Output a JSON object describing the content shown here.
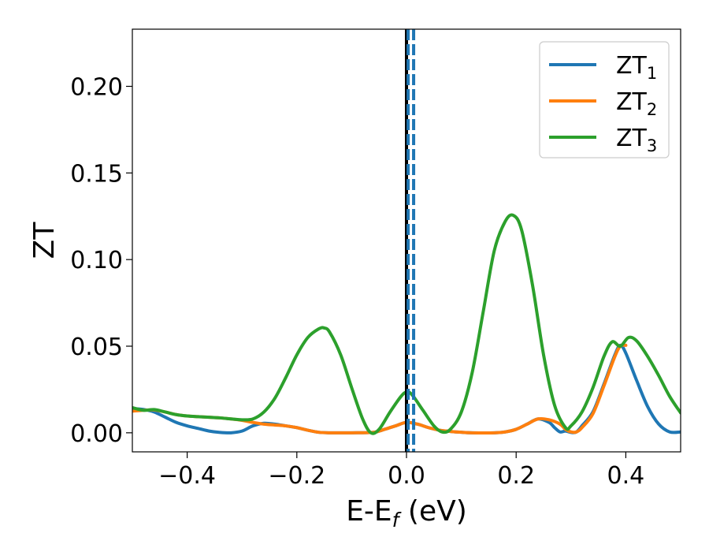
{
  "chart_data": {
    "type": "line",
    "title": "",
    "xlabel": "E-E",
    "xlabel_sub": "f",
    "xlabel_unit": " (eV)",
    "ylabel": "ZT",
    "xlim": [
      -0.5,
      0.5
    ],
    "ylim": [
      -0.011,
      0.233
    ],
    "xticks": [
      -0.4,
      -0.2,
      0.0,
      0.2,
      0.4
    ],
    "xtick_labels": [
      "−0.4",
      "−0.2",
      "0.0",
      "0.2",
      "0.4"
    ],
    "yticks": [
      0.0,
      0.05,
      0.1,
      0.15,
      0.2
    ],
    "ytick_labels": [
      "0.00",
      "0.05",
      "0.10",
      "0.15",
      "0.20"
    ],
    "grid": false,
    "legend_position": "top-right",
    "vlines": [
      {
        "x": 0.0,
        "color": "#000000",
        "style": "solid"
      },
      {
        "x": 0.003,
        "color": "#1f77b4",
        "style": "dashed"
      },
      {
        "x": 0.013,
        "color": "#1f77b4",
        "style": "dashed"
      }
    ],
    "series": [
      {
        "name": "ZT",
        "name_sub": "1",
        "color": "#1f77b4",
        "points": [
          [
            -0.5,
            0.014
          ],
          [
            -0.48,
            0.0135
          ],
          [
            -0.46,
            0.012
          ],
          [
            -0.44,
            0.009
          ],
          [
            -0.42,
            0.006
          ],
          [
            -0.4,
            0.004
          ],
          [
            -0.38,
            0.0025
          ],
          [
            -0.36,
            0.001
          ],
          [
            -0.34,
            0.0002
          ],
          [
            -0.32,
            0.0
          ],
          [
            -0.3,
            0.001
          ],
          [
            -0.28,
            0.004
          ],
          [
            -0.26,
            0.0055
          ],
          [
            -0.24,
            0.005
          ],
          [
            -0.22,
            0.004
          ],
          [
            -0.2,
            0.003
          ],
          [
            -0.18,
            0.0015
          ],
          [
            -0.16,
            0.0003
          ],
          [
            -0.14,
            0.0
          ],
          [
            -0.1,
            0.0
          ],
          [
            -0.06,
            0.0003
          ],
          [
            -0.04,
            0.002
          ],
          [
            -0.02,
            0.004
          ],
          [
            0.0,
            0.006
          ],
          [
            0.02,
            0.005
          ],
          [
            0.04,
            0.003
          ],
          [
            0.06,
            0.0015
          ],
          [
            0.08,
            0.0008
          ],
          [
            0.1,
            0.0003
          ],
          [
            0.12,
            0.0
          ],
          [
            0.16,
            0.0
          ],
          [
            0.18,
            0.0005
          ],
          [
            0.2,
            0.002
          ],
          [
            0.22,
            0.005
          ],
          [
            0.24,
            0.008
          ],
          [
            0.26,
            0.006
          ],
          [
            0.27,
            0.003
          ],
          [
            0.28,
            0.0005
          ],
          [
            0.29,
            0.001
          ],
          [
            0.3,
            0.0002
          ],
          [
            0.31,
            0.0005
          ],
          [
            0.32,
            0.004
          ],
          [
            0.34,
            0.012
          ],
          [
            0.36,
            0.028
          ],
          [
            0.38,
            0.045
          ],
          [
            0.39,
            0.0505
          ],
          [
            0.4,
            0.046
          ],
          [
            0.42,
            0.03
          ],
          [
            0.44,
            0.015
          ],
          [
            0.46,
            0.005
          ],
          [
            0.48,
            0.0005
          ],
          [
            0.5,
            0.0005
          ]
        ]
      },
      {
        "name": "ZT",
        "name_sub": "2",
        "color": "#ff7f0e",
        "points": [
          [
            -0.5,
            0.0125
          ],
          [
            -0.48,
            0.013
          ],
          [
            -0.46,
            0.0132
          ],
          [
            -0.44,
            0.012
          ],
          [
            -0.42,
            0.0105
          ],
          [
            -0.4,
            0.0097
          ],
          [
            -0.38,
            0.0093
          ],
          [
            -0.36,
            0.009
          ],
          [
            -0.34,
            0.0086
          ],
          [
            -0.32,
            0.008
          ],
          [
            -0.3,
            0.0072
          ],
          [
            -0.28,
            0.006
          ],
          [
            -0.26,
            0.005
          ],
          [
            -0.24,
            0.0045
          ],
          [
            -0.22,
            0.004
          ],
          [
            -0.2,
            0.003
          ],
          [
            -0.18,
            0.0015
          ],
          [
            -0.16,
            0.0003
          ],
          [
            -0.14,
            0.0
          ],
          [
            -0.1,
            0.0
          ],
          [
            -0.06,
            0.0003
          ],
          [
            -0.04,
            0.002
          ],
          [
            -0.02,
            0.004
          ],
          [
            0.0,
            0.006
          ],
          [
            0.02,
            0.005
          ],
          [
            0.04,
            0.003
          ],
          [
            0.06,
            0.0015
          ],
          [
            0.08,
            0.0008
          ],
          [
            0.1,
            0.0003
          ],
          [
            0.12,
            0.0
          ],
          [
            0.16,
            0.0
          ],
          [
            0.18,
            0.0005
          ],
          [
            0.2,
            0.002
          ],
          [
            0.22,
            0.005
          ],
          [
            0.24,
            0.008
          ],
          [
            0.26,
            0.0075
          ],
          [
            0.28,
            0.005
          ],
          [
            0.29,
            0.002
          ],
          [
            0.3,
            0.0005
          ],
          [
            0.31,
            0.0005
          ],
          [
            0.32,
            0.003
          ],
          [
            0.34,
            0.011
          ],
          [
            0.36,
            0.027
          ],
          [
            0.38,
            0.044
          ],
          [
            0.39,
            0.05
          ],
          [
            0.4,
            0.0505
          ]
        ]
      },
      {
        "name": "ZT",
        "name_sub": "3",
        "color": "#2ca02c",
        "points": [
          [
            -0.5,
            0.0145
          ],
          [
            -0.48,
            0.013
          ],
          [
            -0.46,
            0.0134
          ],
          [
            -0.44,
            0.012
          ],
          [
            -0.42,
            0.0105
          ],
          [
            -0.4,
            0.0097
          ],
          [
            -0.38,
            0.0093
          ],
          [
            -0.36,
            0.009
          ],
          [
            -0.34,
            0.0086
          ],
          [
            -0.32,
            0.008
          ],
          [
            -0.3,
            0.0075
          ],
          [
            -0.28,
            0.008
          ],
          [
            -0.26,
            0.012
          ],
          [
            -0.24,
            0.02
          ],
          [
            -0.22,
            0.032
          ],
          [
            -0.2,
            0.045
          ],
          [
            -0.18,
            0.055
          ],
          [
            -0.16,
            0.06
          ],
          [
            -0.15,
            0.0605
          ],
          [
            -0.14,
            0.058
          ],
          [
            -0.12,
            0.045
          ],
          [
            -0.1,
            0.026
          ],
          [
            -0.08,
            0.008
          ],
          [
            -0.065,
            0.0
          ],
          [
            -0.05,
            0.002
          ],
          [
            -0.03,
            0.012
          ],
          [
            -0.01,
            0.021
          ],
          [
            0.0,
            0.0235
          ],
          [
            0.01,
            0.022
          ],
          [
            0.03,
            0.013
          ],
          [
            0.05,
            0.004
          ],
          [
            0.065,
            0.0005
          ],
          [
            0.08,
            0.002
          ],
          [
            0.1,
            0.012
          ],
          [
            0.12,
            0.035
          ],
          [
            0.14,
            0.07
          ],
          [
            0.16,
            0.105
          ],
          [
            0.18,
            0.122
          ],
          [
            0.195,
            0.1255
          ],
          [
            0.21,
            0.117
          ],
          [
            0.23,
            0.085
          ],
          [
            0.25,
            0.045
          ],
          [
            0.27,
            0.016
          ],
          [
            0.29,
            0.003
          ],
          [
            0.3,
            0.004
          ],
          [
            0.32,
            0.012
          ],
          [
            0.34,
            0.026
          ],
          [
            0.36,
            0.044
          ],
          [
            0.375,
            0.0525
          ],
          [
            0.39,
            0.05
          ],
          [
            0.405,
            0.055
          ],
          [
            0.42,
            0.053
          ],
          [
            0.44,
            0.044
          ],
          [
            0.46,
            0.033
          ],
          [
            0.48,
            0.021
          ],
          [
            0.5,
            0.0115
          ]
        ]
      }
    ]
  }
}
